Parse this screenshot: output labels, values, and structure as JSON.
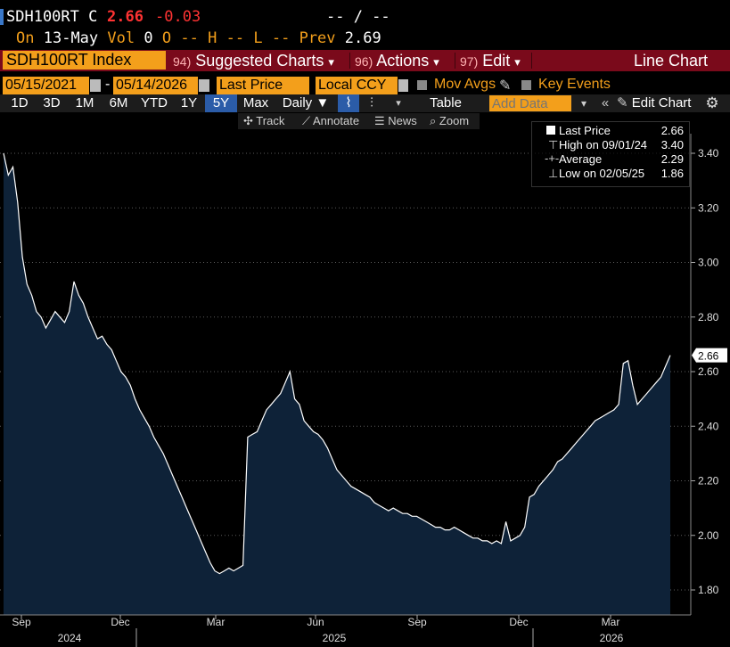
{
  "header": {
    "ticker": "SDH100RT",
    "flag": "C",
    "last": "2.66",
    "change": "-0.03",
    "bid_ask": "-- / --",
    "on_label": "On",
    "date": "13-May",
    "vol_label": "Vol",
    "vol": "0",
    "open_label": "O",
    "open": "--",
    "high_label": "H",
    "high": "--",
    "low_label": "L",
    "low": "--",
    "prev_label": "Prev",
    "prev": "2.69"
  },
  "menubar": {
    "index_name": "SDH100RT Index",
    "suggested": {
      "num": "94)",
      "label": "Suggested Charts",
      "arrow": "▾"
    },
    "actions": {
      "num": "96)",
      "label": "Actions",
      "arrow": "▾"
    },
    "edit": {
      "num": "97)",
      "label": "Edit",
      "arrow": "▾"
    },
    "chart_type": "Line Chart"
  },
  "controls": {
    "start_date": "05/15/2021",
    "dash": "-",
    "end_date": "05/14/2026",
    "field": "Last Price",
    "currency": "Local CCY",
    "mov_avgs": "Mov Avgs",
    "key_events": "Key Events"
  },
  "ranges": {
    "buttons": [
      "1D",
      "3D",
      "1M",
      "6M",
      "YTD",
      "1Y",
      "5Y",
      "Max"
    ],
    "selected": "5Y",
    "period": "Daily ▼",
    "table": "Table",
    "add_data_placeholder": "Add Data",
    "edit_chart": "Edit Chart"
  },
  "tools": {
    "track": "Track",
    "annotate": "Annotate",
    "news": "News",
    "zoom": "Zoom"
  },
  "legend": {
    "last_label": "Last Price",
    "last_value": "2.66",
    "high_label": "High on 09/01/24",
    "high_value": "3.40",
    "avg_label": "Average",
    "avg_value": "2.29",
    "low_label": "Low on 02/05/25",
    "low_value": "1.86"
  },
  "colors": {
    "orange": "#f39f1b",
    "maroon": "#7a0a1b",
    "area": "#0e2238",
    "negative": "#ff3333"
  },
  "chart_data": {
    "type": "area",
    "y_ticks": [
      "3.40",
      "3.20",
      "3.00",
      "2.80",
      "2.60",
      "2.40",
      "2.20",
      "2.00",
      "1.80"
    ],
    "ylim": [
      1.73,
      3.44
    ],
    "x_ticks": [
      "Sep",
      "Dec",
      "Mar",
      "Jun",
      "Sep",
      "Dec",
      "Mar"
    ],
    "years": [
      "2024",
      "2025",
      "2026"
    ],
    "last_label": "2.66",
    "series": [
      {
        "values": [
          3.4,
          3.32,
          3.35,
          3.22,
          3.02,
          2.92,
          2.88,
          2.82,
          2.8,
          2.76,
          2.79,
          2.82,
          2.8,
          2.78,
          2.82,
          2.93,
          2.88,
          2.85,
          2.8,
          2.76,
          2.72,
          2.73,
          2.7,
          2.68,
          2.64,
          2.6,
          2.58,
          2.55,
          2.5,
          2.46,
          2.43,
          2.4,
          2.36,
          2.33,
          2.3,
          2.26,
          2.22,
          2.18,
          2.14,
          2.1,
          2.06,
          2.02,
          1.98,
          1.94,
          1.9,
          1.87,
          1.86,
          1.87,
          1.88,
          1.87,
          1.88,
          1.89,
          2.36,
          2.37,
          2.38,
          2.42,
          2.46,
          2.48,
          2.5,
          2.52,
          2.56,
          2.6,
          2.5,
          2.48,
          2.42,
          2.4,
          2.38,
          2.37,
          2.35,
          2.32,
          2.28,
          2.24,
          2.22,
          2.2,
          2.18,
          2.17,
          2.16,
          2.15,
          2.14,
          2.12,
          2.11,
          2.1,
          2.09,
          2.1,
          2.09,
          2.08,
          2.08,
          2.07,
          2.07,
          2.06,
          2.05,
          2.04,
          2.03,
          2.03,
          2.02,
          2.02,
          2.03,
          2.02,
          2.01,
          2.0,
          1.99,
          1.99,
          1.98,
          1.98,
          1.97,
          1.98,
          1.97,
          2.05,
          1.98,
          1.99,
          2.0,
          2.03,
          2.14,
          2.15,
          2.18,
          2.2,
          2.22,
          2.24,
          2.27,
          2.28,
          2.3,
          2.32,
          2.34,
          2.36,
          2.38,
          2.4,
          2.42,
          2.43,
          2.44,
          2.45,
          2.46,
          2.48,
          2.63,
          2.64,
          2.55,
          2.48,
          2.5,
          2.52,
          2.54,
          2.56,
          2.58,
          2.62,
          2.66
        ]
      }
    ]
  }
}
